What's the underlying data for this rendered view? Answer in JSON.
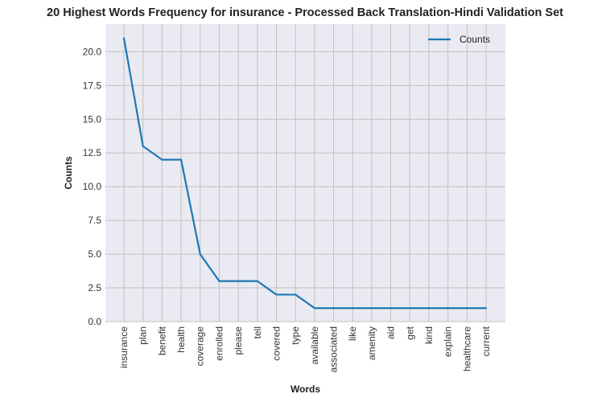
{
  "chart_data": {
    "type": "line",
    "title": "20 Highest Words Frequency for insurance - Processed Back Translation-Hindi Validation Set",
    "xlabel": "Words",
    "ylabel": "Counts",
    "categories": [
      "insurance",
      "plan",
      "benefit",
      "health",
      "coverage",
      "enrolled",
      "please",
      "tell",
      "covered",
      "type",
      "available",
      "associated",
      "like",
      "amenity",
      "aid",
      "get",
      "kind",
      "explain",
      "healthcare",
      "current"
    ],
    "series": [
      {
        "name": "Counts",
        "color": "#1f77b4",
        "values": [
          21,
          13,
          12,
          12,
          5,
          3,
          3,
          3,
          2,
          2,
          1,
          1,
          1,
          1,
          1,
          1,
          1,
          1,
          1,
          1
        ]
      }
    ],
    "ylim": [
      0,
      22.05
    ],
    "yticks": [
      "0.0",
      "2.5",
      "5.0",
      "7.5",
      "10.0",
      "12.5",
      "15.0",
      "17.5",
      "20.0"
    ],
    "grid": true,
    "legend_position": "top-right",
    "background_color": "#eaeaf2",
    "grid_color": "#c0c0c0"
  }
}
